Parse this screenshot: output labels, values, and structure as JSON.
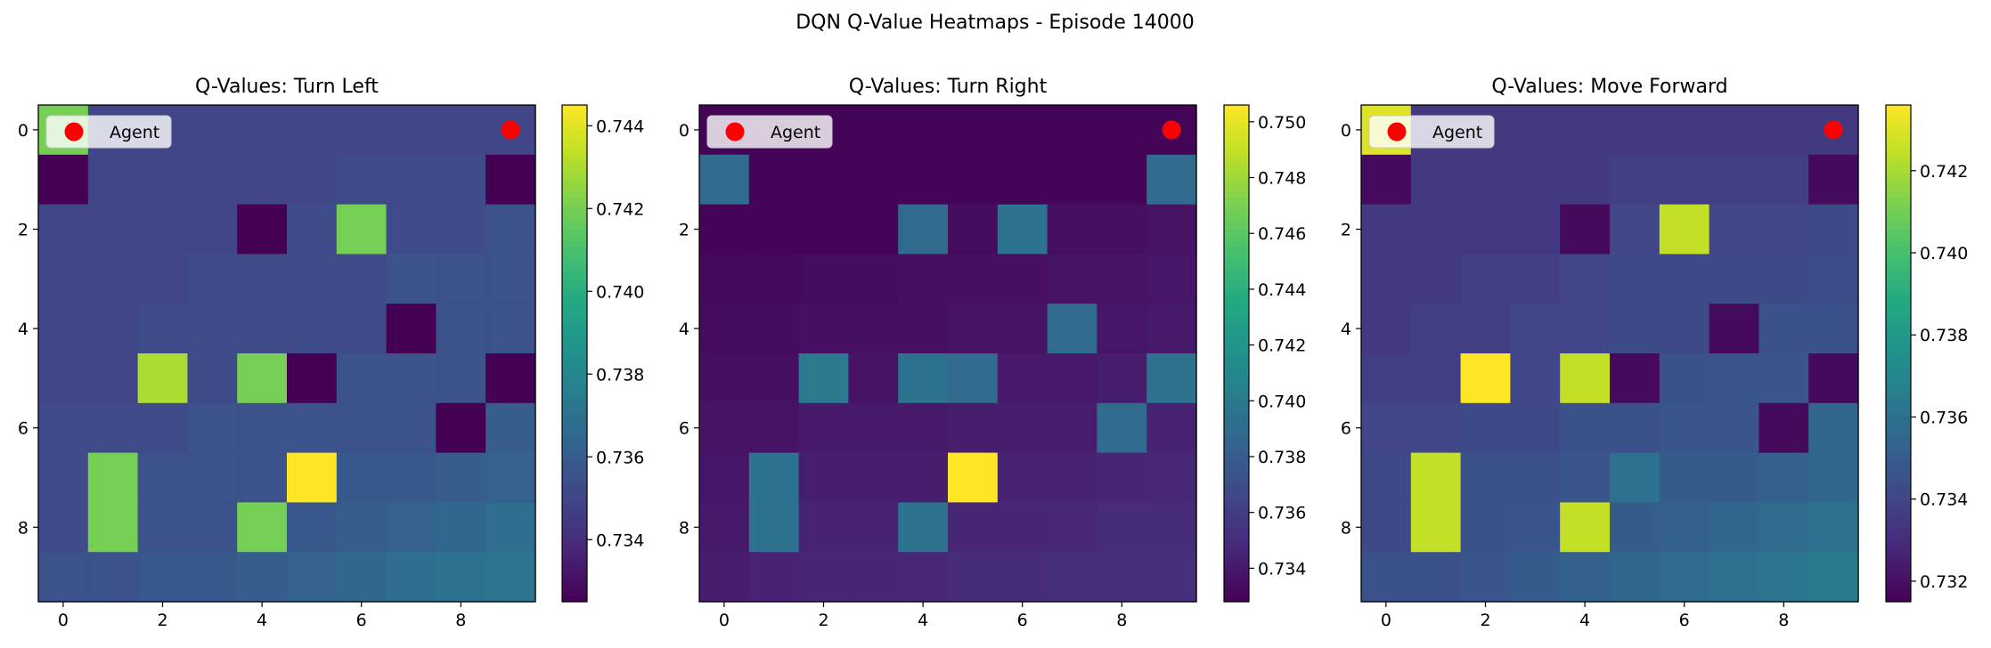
{
  "figure_title": "DQN Q-Value Heatmaps - Episode 14000",
  "colormap": "viridis",
  "chart_data": [
    {
      "type": "heatmap",
      "title": "Q-Values: Turn Left",
      "x_ticks": [
        "0",
        "2",
        "4",
        "6",
        "8"
      ],
      "y_ticks": [
        "0",
        "2",
        "4",
        "6",
        "8"
      ],
      "grid_size": [
        10,
        10
      ],
      "color_range": [
        0.7325,
        0.7445
      ],
      "colorbar_ticks": [
        "0.734",
        "0.736",
        "0.738",
        "0.740",
        "0.742",
        "0.744"
      ],
      "colorbar_tick_values": [
        0.734,
        0.736,
        0.738,
        0.74,
        0.742,
        0.744
      ],
      "legend": {
        "label": "Agent",
        "position": "upper-left"
      },
      "agent": {
        "row": 0,
        "col": 9
      },
      "values": [
        [
          0.742,
          0.735,
          0.735,
          0.735,
          0.735,
          0.735,
          0.735,
          0.735,
          0.735,
          0.735
        ],
        [
          0.7325,
          0.735,
          0.735,
          0.735,
          0.735,
          0.735,
          0.7352,
          0.7352,
          0.7352,
          0.7325
        ],
        [
          0.735,
          0.735,
          0.735,
          0.735,
          0.7325,
          0.7352,
          0.742,
          0.7352,
          0.7352,
          0.7355
        ],
        [
          0.735,
          0.735,
          0.735,
          0.7352,
          0.7352,
          0.7352,
          0.7352,
          0.7355,
          0.7355,
          0.7355
        ],
        [
          0.735,
          0.735,
          0.7352,
          0.7352,
          0.7352,
          0.7352,
          0.7352,
          0.7325,
          0.7355,
          0.7355
        ],
        [
          0.735,
          0.735,
          0.743,
          0.7352,
          0.742,
          0.7325,
          0.7355,
          0.7355,
          0.7355,
          0.7325
        ],
        [
          0.7352,
          0.7352,
          0.7352,
          0.7355,
          0.7355,
          0.7355,
          0.7355,
          0.7355,
          0.7325,
          0.736
        ],
        [
          0.7352,
          0.742,
          0.7355,
          0.7355,
          0.7355,
          0.7445,
          0.7358,
          0.7358,
          0.736,
          0.7362
        ],
        [
          0.7352,
          0.742,
          0.7355,
          0.7355,
          0.742,
          0.7358,
          0.736,
          0.7362,
          0.7365,
          0.7368
        ],
        [
          0.7355,
          0.7355,
          0.7358,
          0.7358,
          0.736,
          0.7362,
          0.7365,
          0.7368,
          0.737,
          0.7372
        ]
      ]
    },
    {
      "type": "heatmap",
      "title": "Q-Values: Turn Right",
      "x_ticks": [
        "0",
        "2",
        "4",
        "6",
        "8"
      ],
      "y_ticks": [
        "0",
        "2",
        "4",
        "6",
        "8"
      ],
      "grid_size": [
        10,
        10
      ],
      "color_range": [
        0.7328,
        0.7506
      ],
      "colorbar_ticks": [
        "0.734",
        "0.736",
        "0.738",
        "0.740",
        "0.742",
        "0.744",
        "0.746",
        "0.748",
        "0.750"
      ],
      "colorbar_tick_values": [
        0.734,
        0.736,
        0.738,
        0.74,
        0.742,
        0.744,
        0.746,
        0.748,
        0.75
      ],
      "legend": {
        "label": "Agent",
        "position": "upper-left"
      },
      "agent": {
        "row": 0,
        "col": 9
      },
      "values": [
        [
          0.733,
          0.733,
          0.733,
          0.733,
          0.733,
          0.733,
          0.733,
          0.733,
          0.733,
          0.733
        ],
        [
          0.739,
          0.733,
          0.733,
          0.733,
          0.733,
          0.733,
          0.733,
          0.733,
          0.733,
          0.739
        ],
        [
          0.733,
          0.733,
          0.733,
          0.733,
          0.739,
          0.7333,
          0.7395,
          0.7335,
          0.7335,
          0.7337
        ],
        [
          0.7332,
          0.7332,
          0.7333,
          0.7333,
          0.7335,
          0.7335,
          0.7335,
          0.7337,
          0.7337,
          0.7338
        ],
        [
          0.7333,
          0.7333,
          0.7335,
          0.7335,
          0.7335,
          0.7337,
          0.7337,
          0.739,
          0.7338,
          0.734
        ],
        [
          0.7335,
          0.7335,
          0.74,
          0.7337,
          0.7395,
          0.739,
          0.734,
          0.734,
          0.7342,
          0.7395
        ],
        [
          0.7337,
          0.7337,
          0.734,
          0.734,
          0.734,
          0.7342,
          0.7342,
          0.7342,
          0.739,
          0.7345
        ],
        [
          0.7338,
          0.7395,
          0.7342,
          0.7342,
          0.7342,
          0.7506,
          0.7345,
          0.7345,
          0.7347,
          0.7348
        ],
        [
          0.734,
          0.7395,
          0.7345,
          0.7345,
          0.7395,
          0.7347,
          0.7347,
          0.7348,
          0.735,
          0.735
        ],
        [
          0.7342,
          0.7345,
          0.7347,
          0.7347,
          0.7348,
          0.735,
          0.735,
          0.7352,
          0.7352,
          0.7352
        ]
      ]
    },
    {
      "type": "heatmap",
      "title": "Q-Values: Move Forward",
      "x_ticks": [
        "0",
        "2",
        "4",
        "6",
        "8"
      ],
      "y_ticks": [
        "0",
        "2",
        "4",
        "6",
        "8"
      ],
      "grid_size": [
        10,
        10
      ],
      "color_range": [
        0.7315,
        0.7436
      ],
      "colorbar_ticks": [
        "0.732",
        "0.734",
        "0.736",
        "0.738",
        "0.740",
        "0.742"
      ],
      "colorbar_tick_values": [
        0.732,
        0.734,
        0.736,
        0.738,
        0.74,
        0.742
      ],
      "legend": {
        "label": "Agent",
        "position": "upper-left"
      },
      "agent": {
        "row": 0,
        "col": 9
      },
      "values": [
        [
          0.743,
          0.7335,
          0.7335,
          0.7335,
          0.7335,
          0.7335,
          0.7335,
          0.7335,
          0.7335,
          0.7335
        ],
        [
          0.7318,
          0.7335,
          0.7335,
          0.7335,
          0.7335,
          0.7337,
          0.7337,
          0.7337,
          0.7337,
          0.7318
        ],
        [
          0.7335,
          0.7335,
          0.7335,
          0.7335,
          0.7318,
          0.734,
          0.7425,
          0.734,
          0.734,
          0.7342
        ],
        [
          0.7335,
          0.7335,
          0.7337,
          0.7337,
          0.734,
          0.7342,
          0.7342,
          0.7342,
          0.7342,
          0.7343
        ],
        [
          0.7335,
          0.7337,
          0.7337,
          0.734,
          0.734,
          0.7342,
          0.7342,
          0.7318,
          0.7345,
          0.7345
        ],
        [
          0.7337,
          0.7337,
          0.7436,
          0.734,
          0.7425,
          0.7318,
          0.7345,
          0.7347,
          0.7347,
          0.7318
        ],
        [
          0.734,
          0.734,
          0.7342,
          0.7342,
          0.7345,
          0.7345,
          0.7347,
          0.7347,
          0.7318,
          0.7355
        ],
        [
          0.7342,
          0.7425,
          0.7345,
          0.7345,
          0.7347,
          0.736,
          0.735,
          0.735,
          0.7352,
          0.7355
        ],
        [
          0.7342,
          0.7425,
          0.7345,
          0.7347,
          0.7425,
          0.735,
          0.7352,
          0.7355,
          0.7357,
          0.736
        ],
        [
          0.7345,
          0.7345,
          0.7347,
          0.735,
          0.7352,
          0.7355,
          0.7357,
          0.736,
          0.7362,
          0.7365
        ]
      ]
    }
  ]
}
